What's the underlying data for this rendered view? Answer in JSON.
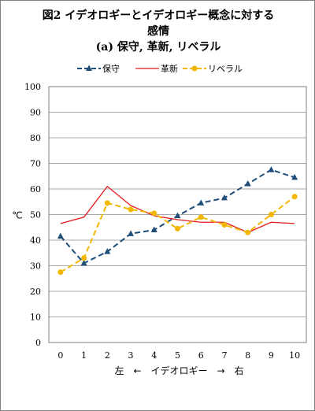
{
  "chart_title": {
    "line1": "図2  イデオロギーとイデオロギー概念に対する",
    "line2": "感情",
    "line3": "(a)  保守, 革新, リベラル"
  },
  "chart_data": {
    "type": "line",
    "x": [
      0,
      1,
      2,
      3,
      4,
      5,
      6,
      7,
      8,
      9,
      10
    ],
    "xlabel": "左　←　イデオロギー　→　右",
    "ylabel": "℃",
    "ylim": [
      0,
      100
    ],
    "yticks": [
      0,
      10,
      20,
      30,
      40,
      50,
      60,
      70,
      80,
      90,
      100
    ],
    "grid": true,
    "legend_position": "top",
    "series": [
      {
        "name": "保守",
        "color": "#1f4e79",
        "style": "dashed",
        "marker": "triangle",
        "values": [
          41.5,
          31,
          35.5,
          42.5,
          44,
          49.5,
          54.5,
          56.5,
          62,
          67.5,
          64.5
        ]
      },
      {
        "name": "革新",
        "color": "#e31a1c",
        "style": "solid",
        "marker": "none",
        "values": [
          46.5,
          49,
          61,
          53.5,
          49.5,
          48,
          47,
          47,
          43,
          47,
          46.5
        ]
      },
      {
        "name": "リベラル",
        "color": "#f2b705",
        "style": "dashed",
        "marker": "circle",
        "values": [
          27.5,
          33,
          54.5,
          52,
          50.5,
          44.5,
          49,
          46,
          43,
          50,
          57
        ]
      }
    ]
  }
}
